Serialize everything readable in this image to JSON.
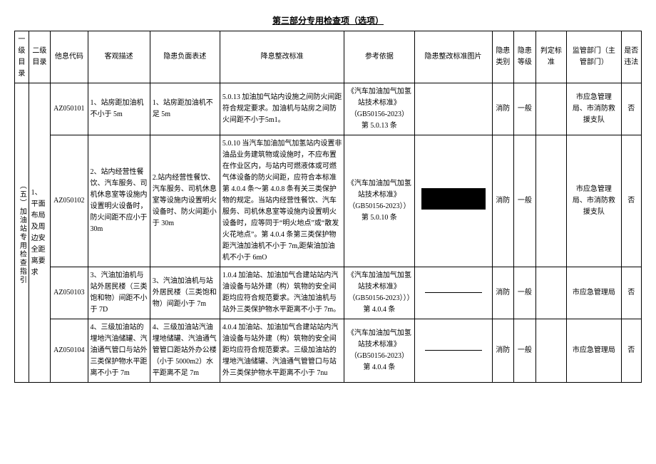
{
  "title": "第三部分专用检查项（选项）",
  "headers": {
    "l1": "一级目录",
    "l2": "二级目录",
    "code": "他息代码",
    "obj": "客观描述",
    "neg": "隐患负面表述",
    "std": "降息整改标准",
    "ref": "参考依据",
    "img": "隐患整改标准图片",
    "cat": "隐患类别",
    "lvl": "隐患等级",
    "jud": "判定标准",
    "sup": "监管部门（主管部门）",
    "law": "是否违法"
  },
  "level1": "（五）加油站专用检查指引",
  "level2": "1、平面布局及周边安全距离要求",
  "rows": [
    {
      "code": "AZ050101",
      "obj": "1、站房距加油机不小于 5m",
      "neg": "1、站房距加油机不足 5m",
      "std": "5.0.13 加油加气站内设施之间防火间距符合规定要求。加油机与站房之间防火间距不小于5m1。",
      "ref": "《汽车加油加气加氢站技术标准》（GB50156-2023）第 5.0.13 条",
      "img_type": "none",
      "cat": "消防",
      "lvl": "一般",
      "jud": "",
      "sup": "市应急管理局、市消防救援支队",
      "law": "否"
    },
    {
      "code": "AZ050102",
      "obj": "2、站内经营性餐饮、汽车服务、司机休息室等设施内设置明火设备时，防火间距不应小于 30m",
      "neg": "2.站内经营性餐饮、汽车服务、司机休息室等设施内设置明火设备时、防火间距小于 30m",
      "std": "5.0.10 当汽车加油加气加氢站内设置非油品业务建筑物或设施时，不应布置在作业区内，与站内可燃液体或可燃气体设备的防火间距，应符合本标准第 4.0.4 条～第 4.0.8 条有关三类保护物的规定。当站内经营性餐饮、汽车服务、司机休息室等设施内设置明火设备时，应等同于“明火地点”或“散发火花地点”。第 4.0.4 条第三类保护物距汽油加油机不小于 7m,距柴油加油机不小于 6mO",
      "ref": "《汽车加油加气加氢站技术标准》（GB50156-2023））第 5.0.10 条",
      "img_type": "block",
      "cat": "消防",
      "lvl": "一般",
      "jud": "",
      "sup": "市应急管理局、市消防救援支队",
      "law": "否"
    },
    {
      "code": "AZ050103",
      "obj": "3、汽油加油机与站外居民楼（三类饱和物）间距不小于 7D",
      "neg": "3、汽油加油机与站外居民楼（三类饱和物）间距小于 7m",
      "std": "1.0.4 加油站、加油加气合建站站内汽油设备与站外建（构）筑物的安全间距均应符合规范要求。汽油加油机与站外三类保护物水平距离不小于 7m。",
      "ref": "《汽车加油加气加氢站技术标准》（GB50156-2023）））第 4.0.4 条",
      "img_type": "line",
      "cat": "消防",
      "lvl": "一般",
      "jud": "",
      "sup": "市应急管理局",
      "law": "否"
    },
    {
      "code": "AZ050104",
      "obj": "4、三级加油站的埋地汽油储罐、汽油通气管口与站外三类保护物水平距离不小于 7m",
      "neg": "4、三级加油站汽油埋地储罐、汽油通气管管口距站外办公楼（小于 5000m2）水平距离不足 7m",
      "std": "4.0.4 加油站、加油加气合建站站内汽油设备与站外建（构）筑物的安全间距均应符合规范要求。三级加油站的埋地汽油储罐、汽油通气管管口与站外三类保护物水平距离不小于 7nu",
      "ref": "《汽车加油加气加氢站技术标准》（GB50156-2023）第 4.0.4 条",
      "img_type": "line",
      "cat": "消防",
      "lvl": "一般",
      "jud": "",
      "sup": "市应急管理局",
      "law": "否"
    }
  ]
}
